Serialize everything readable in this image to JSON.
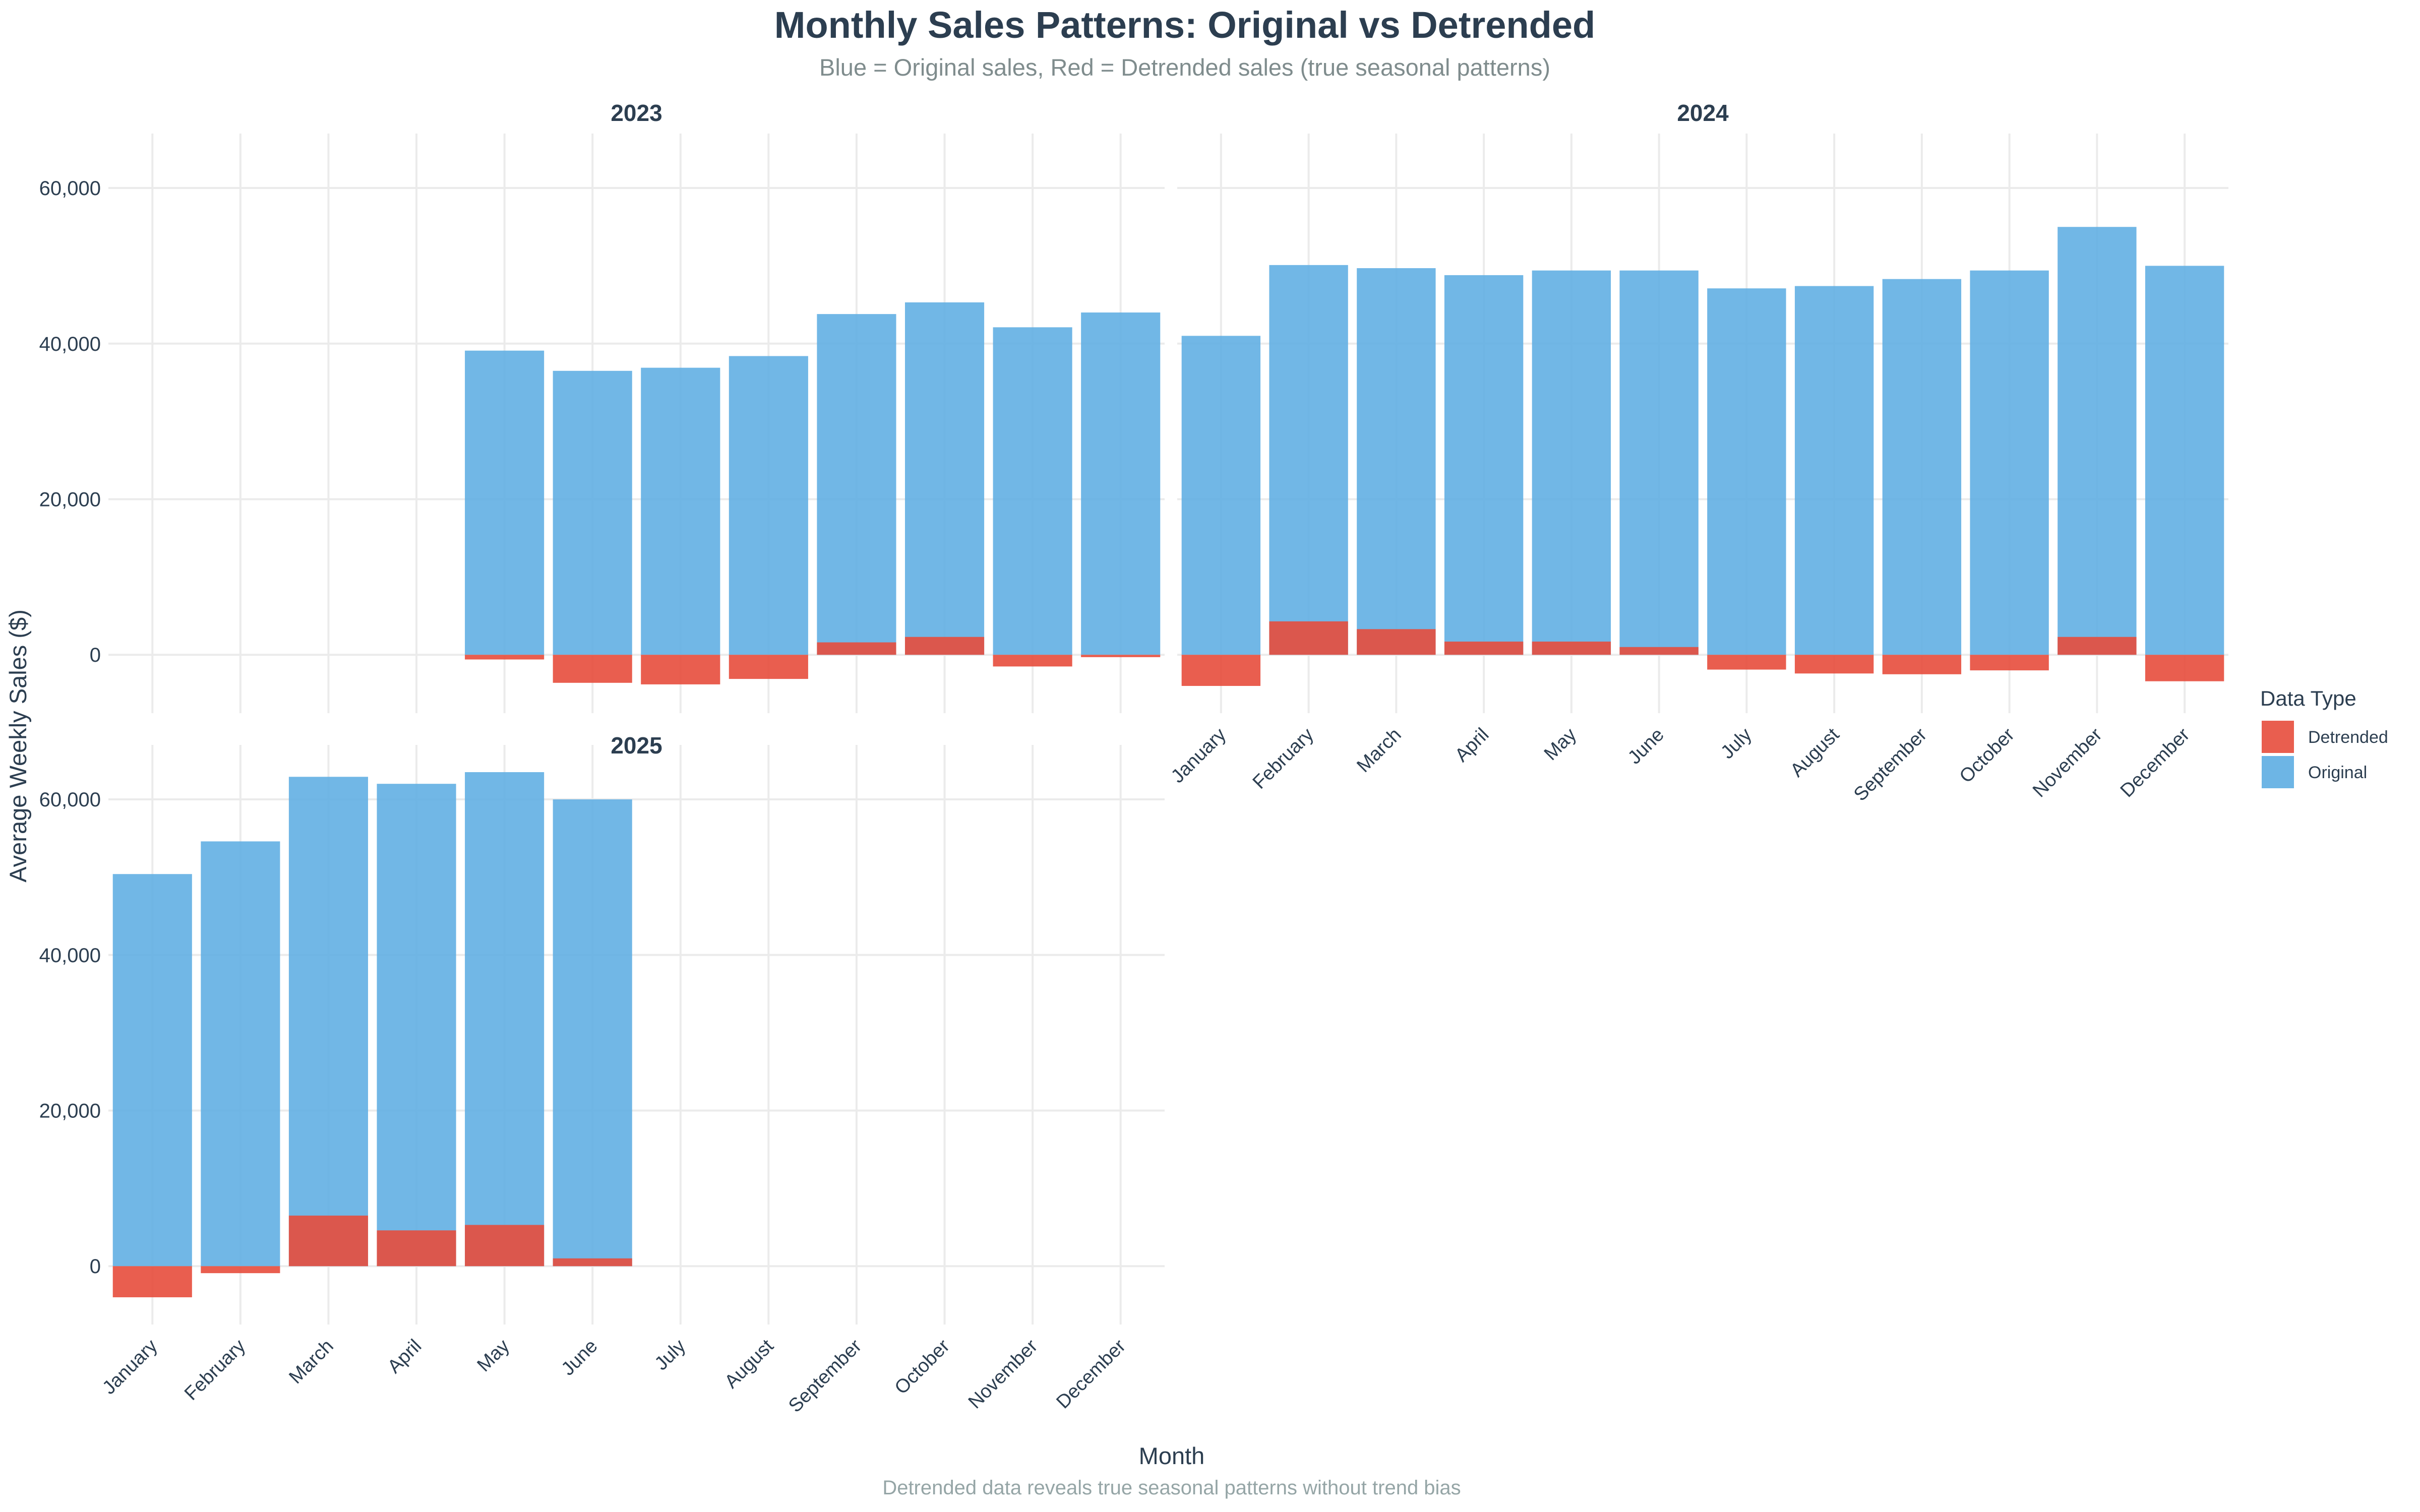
{
  "chart_data": {
    "type": "bar",
    "title": "Monthly Sales Patterns: Original vs Detrended",
    "subtitle": "Blue = Original sales, Red = Detrended sales (true seasonal patterns)",
    "caption": "Detrended data reveals true seasonal patterns without trend bias",
    "xlabel": "Month",
    "ylabel": "Average Weekly Sales ($)",
    "ylim": [
      -7500,
      67000
    ],
    "yticks": [
      0,
      20000,
      40000,
      60000
    ],
    "ytick_labels": [
      "0",
      "20,000",
      "40,000",
      "60,000"
    ],
    "grid": true,
    "legend": {
      "title": "Data Type",
      "position": "right",
      "entries": [
        {
          "label": "Detrended",
          "color": "#e74c3c"
        },
        {
          "label": "Original",
          "color": "#5dade2"
        }
      ]
    },
    "categories": [
      "January",
      "February",
      "March",
      "April",
      "May",
      "June",
      "July",
      "August",
      "September",
      "October",
      "November",
      "December"
    ],
    "colors": {
      "Original": "#5dade2",
      "Detrended": "#e74c3c"
    },
    "panels": [
      {
        "facet": "2023",
        "series": [
          {
            "name": "Original",
            "values": [
              null,
              null,
              null,
              null,
              39100,
              36500,
              36900,
              38400,
              43800,
              45300,
              42100,
              44000
            ]
          },
          {
            "name": "Detrended",
            "values": [
              null,
              null,
              null,
              null,
              -600,
              -3600,
              -3800,
              -3100,
              1600,
              2300,
              -1500,
              -300
            ]
          }
        ]
      },
      {
        "facet": "2024",
        "series": [
          {
            "name": "Original",
            "values": [
              41000,
              50100,
              49700,
              48800,
              49400,
              49400,
              47100,
              47400,
              48300,
              49400,
              55000,
              50000
            ]
          },
          {
            "name": "Detrended",
            "values": [
              -4000,
              4300,
              3300,
              1700,
              1700,
              1000,
              -1900,
              -2400,
              -2500,
              -2000,
              2300,
              -3400
            ]
          }
        ]
      },
      {
        "facet": "2025",
        "series": [
          {
            "name": "Original",
            "values": [
              50400,
              54600,
              62900,
              62000,
              63500,
              60000,
              null,
              null,
              null,
              null,
              null,
              null
            ]
          },
          {
            "name": "Detrended",
            "values": [
              -4000,
              -900,
              6500,
              4600,
              5300,
              1000,
              null,
              null,
              null,
              null,
              null,
              null
            ]
          }
        ]
      }
    ]
  }
}
